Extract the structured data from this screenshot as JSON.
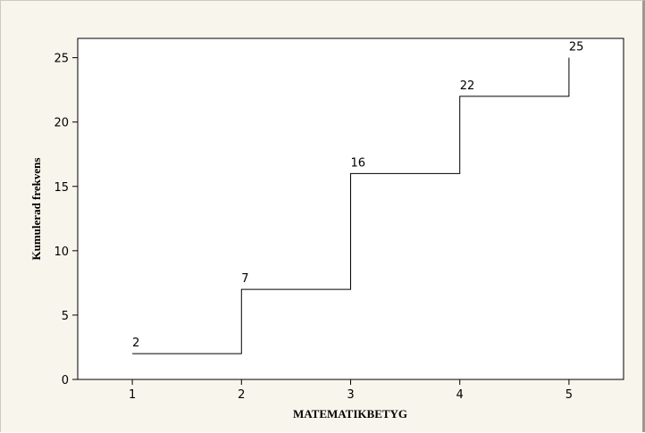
{
  "chart_data": {
    "type": "line",
    "style": "step",
    "xlabel": "MATEMATIKBETYG",
    "ylabel": "Kumulerad frekvens",
    "x": [
      1,
      2,
      3,
      4,
      5
    ],
    "y": [
      2,
      7,
      16,
      22,
      25
    ],
    "data_labels": [
      "2",
      "7",
      "16",
      "22",
      "25"
    ],
    "xticks": [
      "1",
      "2",
      "3",
      "4",
      "5"
    ],
    "yticks": [
      "0",
      "5",
      "10",
      "15",
      "20",
      "25"
    ],
    "xlim": [
      0.5,
      5.5
    ],
    "ylim": [
      0,
      26.5
    ],
    "grid": false,
    "colors": {
      "background": "#f8f5ec",
      "plot_area": "#ffffff",
      "line": "#000000"
    }
  }
}
